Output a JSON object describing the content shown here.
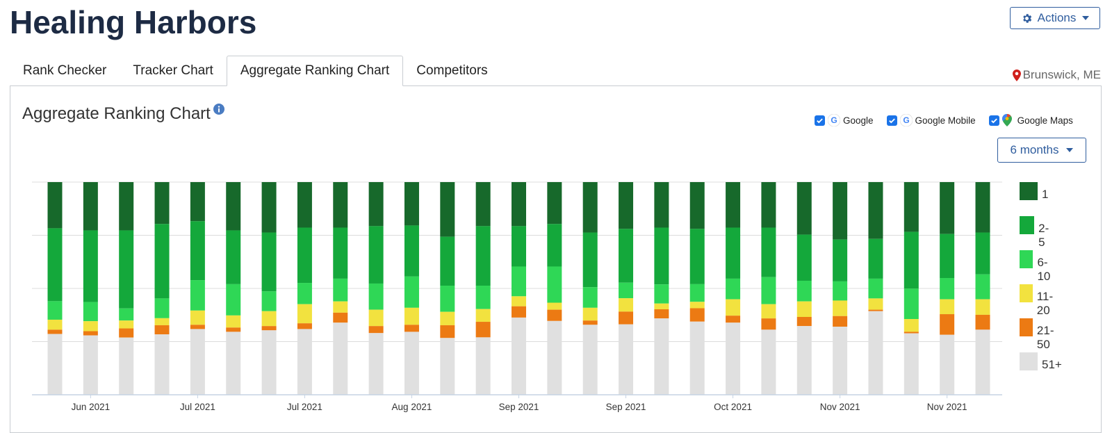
{
  "header": {
    "title": "Healing Harbors",
    "actions_label": "Actions"
  },
  "tabs": [
    {
      "label": "Rank Checker",
      "active": false
    },
    {
      "label": "Tracker Chart",
      "active": false
    },
    {
      "label": "Aggregate Ranking Chart",
      "active": true
    },
    {
      "label": "Competitors",
      "active": false
    }
  ],
  "location": {
    "label": "Brunswick, ME"
  },
  "panel": {
    "title": "Aggregate Ranking Chart",
    "sources": [
      {
        "label": "Google",
        "checked": true,
        "icon": "google-icon"
      },
      {
        "label": "Google Mobile",
        "checked": true,
        "icon": "google-icon"
      },
      {
        "label": "Google Maps",
        "checked": true,
        "icon": "google-maps-icon"
      }
    ],
    "range_label": "6 months"
  },
  "colors": {
    "rank_1": "#17692b",
    "rank_2_5": "#14a83b",
    "rank_6_10": "#2fd756",
    "rank_11_20": "#f2e23f",
    "rank_21_50": "#ec7a13",
    "rank_51_plus": "#e0e0e0",
    "accent": "#2f5d9e"
  },
  "chart_data": {
    "type": "bar",
    "stacked": true,
    "normalized_100": true,
    "grid": true,
    "legend_position": "right",
    "series": [
      {
        "name": "1",
        "values": [
          21.7,
          22.7,
          22.7,
          19.7,
          18.4,
          22.7,
          23.7,
          21.4,
          21.4,
          20.7,
          20.4,
          25.7,
          20.7,
          20.7,
          19.7,
          23.7,
          22.0,
          21.4,
          22.0,
          21.4,
          21.4,
          24.7,
          27.0,
          26.7,
          23.4,
          24.4,
          23.7
        ]
      },
      {
        "name": "2-5",
        "values": [
          34.3,
          33.7,
          36.7,
          35.0,
          27.7,
          25.3,
          27.7,
          26.0,
          24.0,
          27.0,
          24.0,
          23.0,
          28.0,
          19.0,
          20.0,
          25.7,
          25.3,
          26.7,
          26.0,
          24.0,
          23.3,
          21.7,
          19.7,
          18.7,
          26.7,
          20.7,
          19.7
        ]
      },
      {
        "name": "6-10",
        "values": [
          8.7,
          9.0,
          5.7,
          9.3,
          14.3,
          14.7,
          9.3,
          10.0,
          10.7,
          12.3,
          14.7,
          12.3,
          11.0,
          14.0,
          17.0,
          9.7,
          7.3,
          9.0,
          8.3,
          9.7,
          12.7,
          9.7,
          9.0,
          9.3,
          14.3,
          10.0,
          11.7
        ]
      },
      {
        "name": "11-20",
        "values": [
          4.7,
          4.7,
          3.7,
          3.3,
          6.7,
          5.7,
          7.0,
          9.0,
          5.3,
          7.7,
          8.0,
          6.3,
          6.0,
          4.7,
          3.3,
          6.0,
          6.3,
          2.7,
          3.0,
          7.7,
          6.7,
          7.3,
          7.3,
          5.3,
          6.0,
          7.0,
          7.3
        ]
      },
      {
        "name": "21-50",
        "values": [
          2.0,
          2.0,
          4.3,
          4.3,
          2.0,
          2.0,
          2.0,
          2.7,
          4.7,
          3.3,
          3.3,
          6.0,
          7.3,
          5.3,
          5.3,
          2.0,
          6.0,
          4.3,
          6.3,
          3.3,
          5.3,
          4.3,
          5.0,
          0.7,
          0.7,
          9.7,
          7.0
        ]
      },
      {
        "name": "51+",
        "values": [
          28.6,
          27.9,
          26.9,
          28.4,
          30.9,
          29.6,
          30.3,
          30.9,
          33.9,
          29.0,
          29.6,
          26.7,
          27.0,
          36.3,
          34.7,
          32.9,
          33.1,
          35.9,
          34.4,
          33.9,
          30.6,
          32.3,
          32.0,
          39.3,
          28.9,
          28.2,
          30.6
        ]
      }
    ],
    "x_ticks": [
      {
        "label": "Jun 2021",
        "bar_index": 1
      },
      {
        "label": "Jul 2021",
        "bar_index": 4
      },
      {
        "label": "Jul 2021",
        "bar_index": 7
      },
      {
        "label": "Aug 2021",
        "bar_index": 10
      },
      {
        "label": "Sep 2021",
        "bar_index": 13
      },
      {
        "label": "Sep 2021",
        "bar_index": 16
      },
      {
        "label": "Oct 2021",
        "bar_index": 19
      },
      {
        "label": "Nov 2021",
        "bar_index": 22
      },
      {
        "label": "Nov 2021",
        "bar_index": 25
      }
    ]
  }
}
